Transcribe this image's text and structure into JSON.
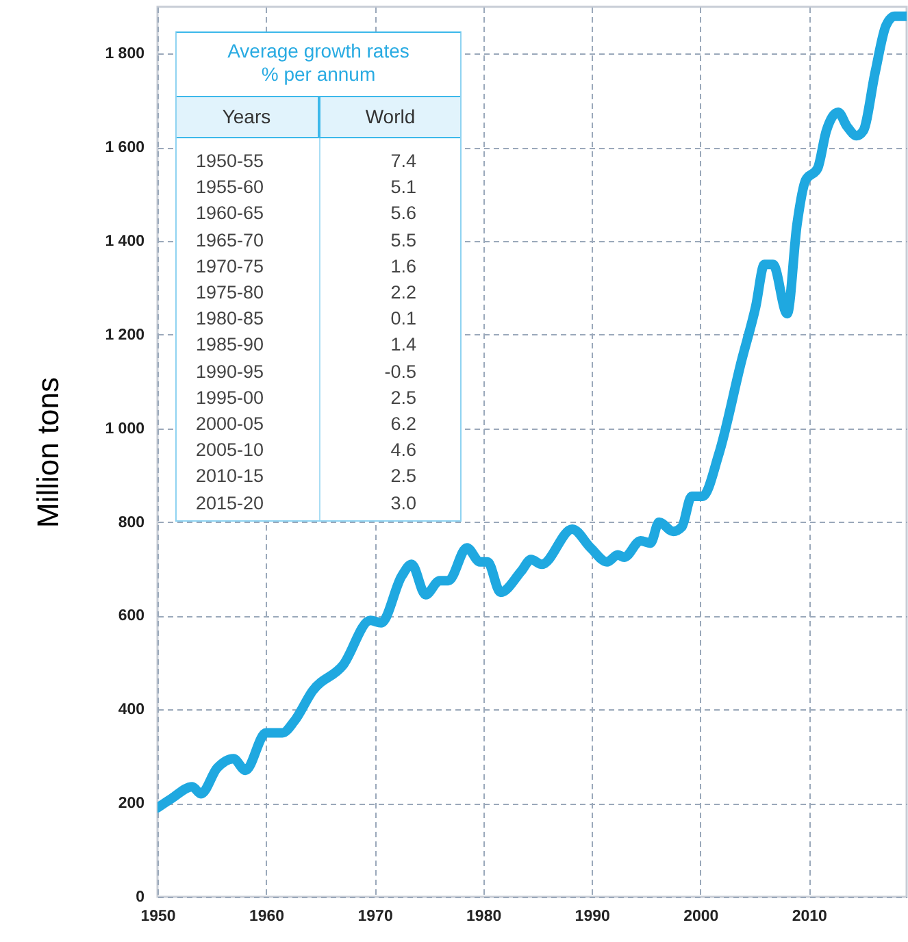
{
  "chart_data": {
    "type": "line",
    "x": [
      1950.0,
      1951.3,
      1953.2,
      1954.0,
      1955.5,
      1957.0,
      1958.1,
      1960.0,
      1961.5,
      1962.6,
      1964.3,
      1967.1,
      1969.6,
      1970.6,
      1972.5,
      1973.4,
      1974.7,
      1976.0,
      1976.8,
      1978.5,
      1979.7,
      1980.4,
      1981.6,
      1983.5,
      1984.4,
      1985.4,
      1988.2,
      1989.9,
      1991.4,
      1992.4,
      1993.0,
      1994.5,
      1995.4,
      1996.2,
      1997.5,
      1998.3,
      1999.2,
      2000.2,
      2001.7,
      2003.8,
      2005.1,
      2005.9,
      2006.7,
      2008.0,
      2008.9,
      2009.7,
      2010.8,
      2011.6,
      2012.7,
      2013.5,
      2014.4,
      2015.0,
      2016.1,
      2017.1,
      2017.9,
      2019.0
    ],
    "values": [
      190,
      210,
      235,
      220,
      275,
      295,
      270,
      350,
      350,
      375,
      440,
      495,
      590,
      585,
      685,
      710,
      645,
      675,
      675,
      745,
      715,
      715,
      650,
      695,
      720,
      710,
      785,
      745,
      715,
      730,
      725,
      760,
      755,
      800,
      780,
      790,
      855,
      855,
      945,
      1145,
      1260,
      1350,
      1350,
      1245,
      1435,
      1530,
      1555,
      1635,
      1675,
      1645,
      1625,
      1635,
      1760,
      1860,
      1880,
      1880
    ],
    "color": "#1fa8e0",
    "ylabel": "Million tons",
    "xlim": [
      1950,
      2019
    ],
    "xticks": [
      1950,
      1960,
      1970,
      1980,
      1990,
      2000,
      2010
    ],
    "ylim": [
      0,
      1900
    ],
    "yticks": [
      0,
      200,
      400,
      600,
      800,
      {
        "value": 1000,
        "label": "1 000"
      },
      {
        "value": 1200,
        "label": "1 200"
      },
      {
        "value": 1400,
        "label": "1 400"
      },
      {
        "value": 1600,
        "label": "1 600"
      },
      {
        "value": 1800,
        "label": "1 800"
      }
    ],
    "grid": true,
    "annotations": [
      "Average growth rates",
      "% per annum",
      "Years",
      "World",
      "1950-55",
      "7.4",
      "1955-60",
      "5.1",
      "1960-65",
      "5.6",
      "1965-70",
      "5.5",
      "1970-75",
      "1.6",
      "1975-80",
      "2.2",
      "1980-85",
      "0.1",
      "1985-90",
      "1.4",
      "1990-95",
      "-0.5",
      "1995-00",
      "2.5",
      "2000-05",
      "6.2",
      "2005-10",
      "4.6",
      "2010-15",
      "2.5",
      "2015-20",
      "3.0"
    ]
  }
}
